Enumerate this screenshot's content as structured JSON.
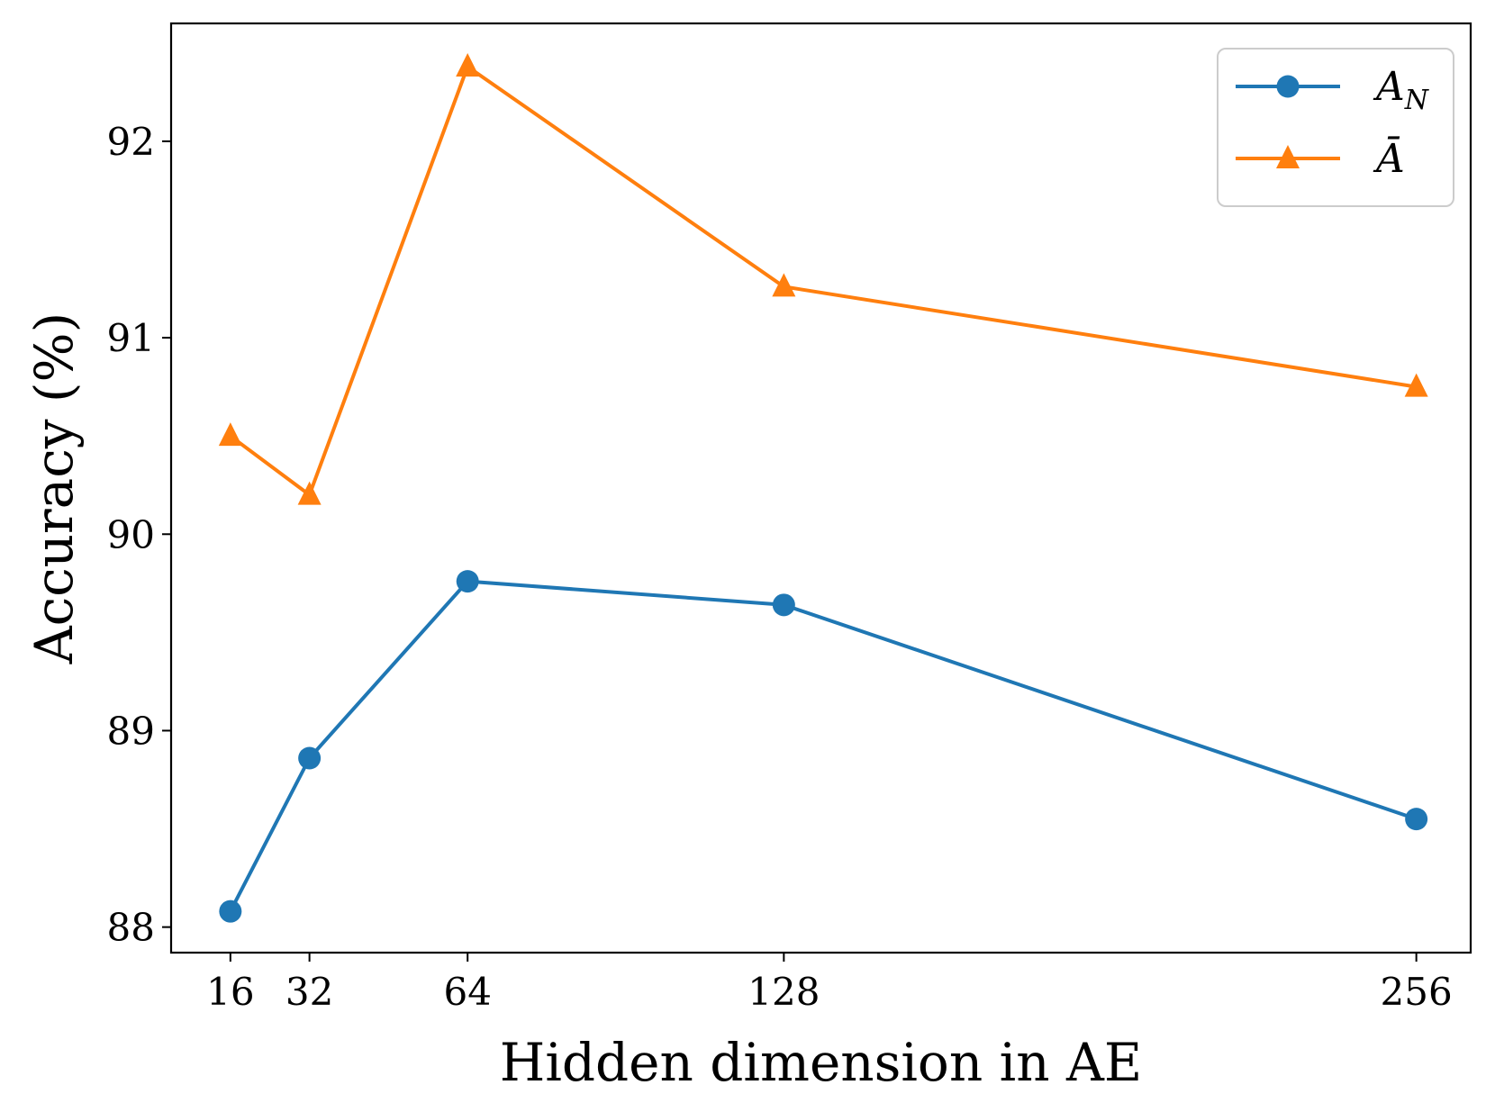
{
  "chart_data": {
    "type": "line",
    "xlabel": "Hidden dimension in AE",
    "ylabel": "Accuracy (%)",
    "x": [
      16,
      32,
      64,
      128,
      256
    ],
    "x_tick_labels": [
      "16",
      "32",
      "64",
      "128",
      "256"
    ],
    "y_ticks": [
      88,
      89,
      90,
      91,
      92
    ],
    "y_tick_labels": [
      "88",
      "89",
      "90",
      "91",
      "92"
    ],
    "xlim": [
      4,
      267
    ],
    "ylim": [
      87.87,
      92.6
    ],
    "grid": false,
    "legend_position": "top-right",
    "series": [
      {
        "name": "A_N",
        "legend_main": "A",
        "legend_sub": "N",
        "color": "#1f77b4",
        "marker": "circle",
        "values": [
          88.08,
          88.86,
          89.76,
          89.64,
          88.55
        ]
      },
      {
        "name": "Ā",
        "legend_main": "Ā",
        "legend_sub": "",
        "color": "#ff7f0e",
        "marker": "triangle",
        "values": [
          90.5,
          90.2,
          92.38,
          91.26,
          90.75
        ]
      }
    ]
  }
}
